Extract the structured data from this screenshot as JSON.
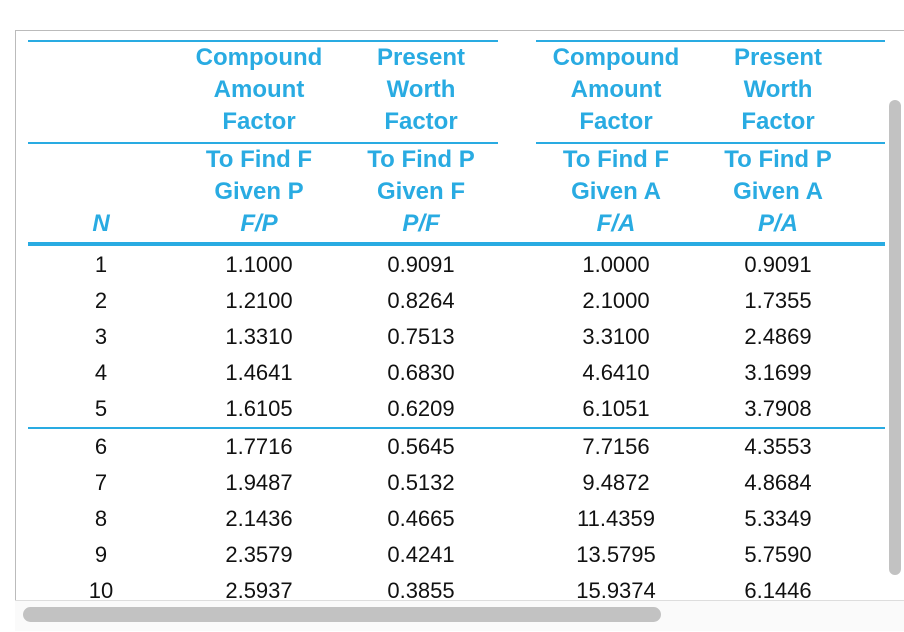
{
  "table": {
    "n_label": "N",
    "columns": [
      {
        "title": [
          "Compound",
          "Amount",
          "Factor"
        ],
        "find": [
          "To Find F",
          "Given P"
        ],
        "symbol": "F/P"
      },
      {
        "title": [
          "Present",
          "Worth",
          "Factor"
        ],
        "find": [
          "To Find P",
          "Given F"
        ],
        "symbol": "P/F"
      },
      {
        "title": [
          "Compound",
          "Amount",
          "Factor"
        ],
        "find": [
          "To Find F",
          "Given A"
        ],
        "symbol": "F/A"
      },
      {
        "title": [
          "Present",
          "Worth",
          "Factor"
        ],
        "find": [
          "To Find P",
          "Given A"
        ],
        "symbol": "P/A"
      }
    ],
    "rows": [
      [
        "1",
        "1.1000",
        "0.9091",
        "1.0000",
        "0.9091"
      ],
      [
        "2",
        "1.2100",
        "0.8264",
        "2.1000",
        "1.7355"
      ],
      [
        "3",
        "1.3310",
        "0.7513",
        "3.3100",
        "2.4869"
      ],
      [
        "4",
        "1.4641",
        "0.6830",
        "4.6410",
        "3.1699"
      ],
      [
        "5",
        "1.6105",
        "0.6209",
        "6.1051",
        "3.7908"
      ],
      [
        "6",
        "1.7716",
        "0.5645",
        "7.7156",
        "4.3553"
      ],
      [
        "7",
        "1.9487",
        "0.5132",
        "9.4872",
        "4.8684"
      ],
      [
        "8",
        "2.1436",
        "0.4665",
        "11.4359",
        "5.3349"
      ],
      [
        "9",
        "2.3579",
        "0.4241",
        "13.5795",
        "5.7590"
      ],
      [
        "10",
        "2.5937",
        "0.3855",
        "15.9374",
        "6.1446"
      ]
    ]
  }
}
